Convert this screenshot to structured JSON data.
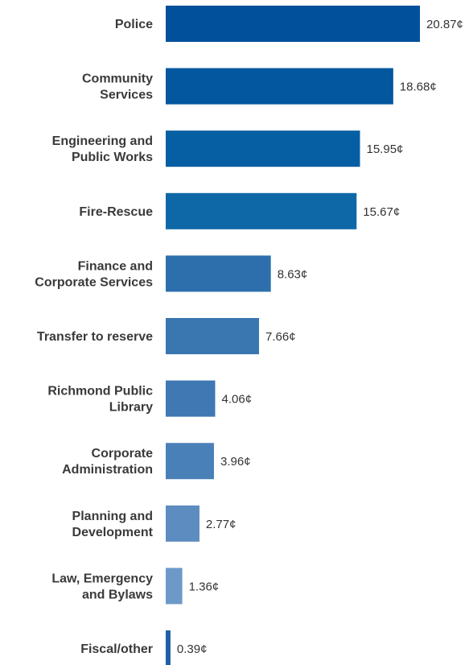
{
  "chart_data": {
    "type": "bar",
    "orientation": "horizontal",
    "unit_suffix": "¢",
    "categories": [
      [
        "Police"
      ],
      [
        "Community",
        "Services"
      ],
      [
        "Engineering and",
        "Public Works"
      ],
      [
        "Fire-Rescue"
      ],
      [
        "Finance and",
        "Corporate Services"
      ],
      [
        "Transfer to reserve"
      ],
      [
        "Richmond Public",
        "Library"
      ],
      [
        "Corporate",
        "Administration"
      ],
      [
        "Planning and",
        "Development"
      ],
      [
        "Law, Emergency",
        "and Bylaws"
      ],
      [
        "Fiscal/other"
      ]
    ],
    "values": [
      20.87,
      18.68,
      15.95,
      15.67,
      8.63,
      7.66,
      4.06,
      3.96,
      2.77,
      1.36,
      0.39
    ],
    "value_labels": [
      "20.87¢",
      "18.68¢",
      "15.95¢",
      "15.67¢",
      "8.63¢",
      "7.66¢",
      "4.06¢",
      "3.96¢",
      "2.77¢",
      "1.36¢",
      "0.39¢"
    ],
    "colors": [
      "#00509b",
      "#02579f",
      "#075fa3",
      "#0e68a8",
      "#2d6fac",
      "#3a76b0",
      "#3f78b2",
      "#4a80b8",
      "#5d8cc0",
      "#6d99c8",
      "#1f5fa5"
    ],
    "xlim": [
      0,
      20.87
    ],
    "grid": false,
    "legend": "none"
  }
}
